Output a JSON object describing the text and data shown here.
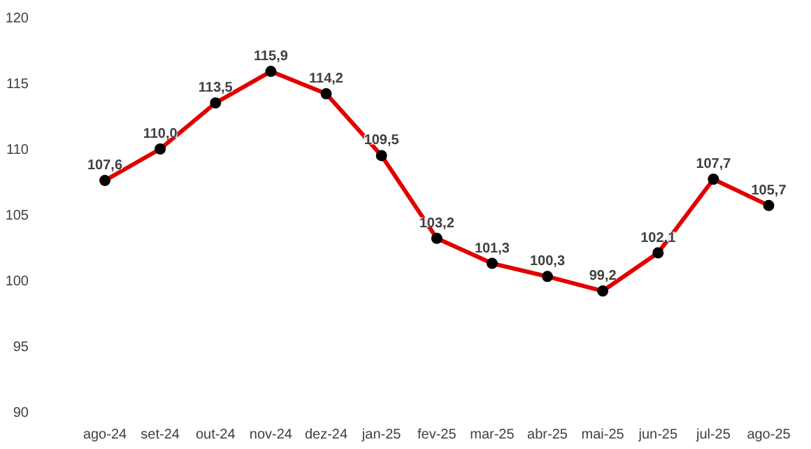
{
  "chart_data": {
    "type": "line",
    "categories": [
      "ago-24",
      "set-24",
      "out-24",
      "nov-24",
      "dez-24",
      "jan-25",
      "fev-25",
      "mar-25",
      "abr-25",
      "mai-25",
      "jun-25",
      "jul-25",
      "ago-25"
    ],
    "series": [
      {
        "color": "#e00000",
        "values": [
          107.6,
          110.0,
          113.5,
          115.9,
          114.2,
          109.5,
          103.2,
          101.3,
          100.3,
          99.2,
          102.1,
          107.7,
          105.7
        ],
        "value_labels": [
          "107,6",
          "110,0",
          "113,5",
          "115,9",
          "114,2",
          "109,5",
          "103,2",
          "101,3",
          "100,3",
          "99,2",
          "102,1",
          "107,7",
          "105,7"
        ]
      }
    ],
    "ylim": [
      90,
      120
    ],
    "yticks": [
      90,
      95,
      100,
      105,
      110,
      115,
      120
    ],
    "grid": false,
    "marker": "circle",
    "line_style": "solid"
  }
}
